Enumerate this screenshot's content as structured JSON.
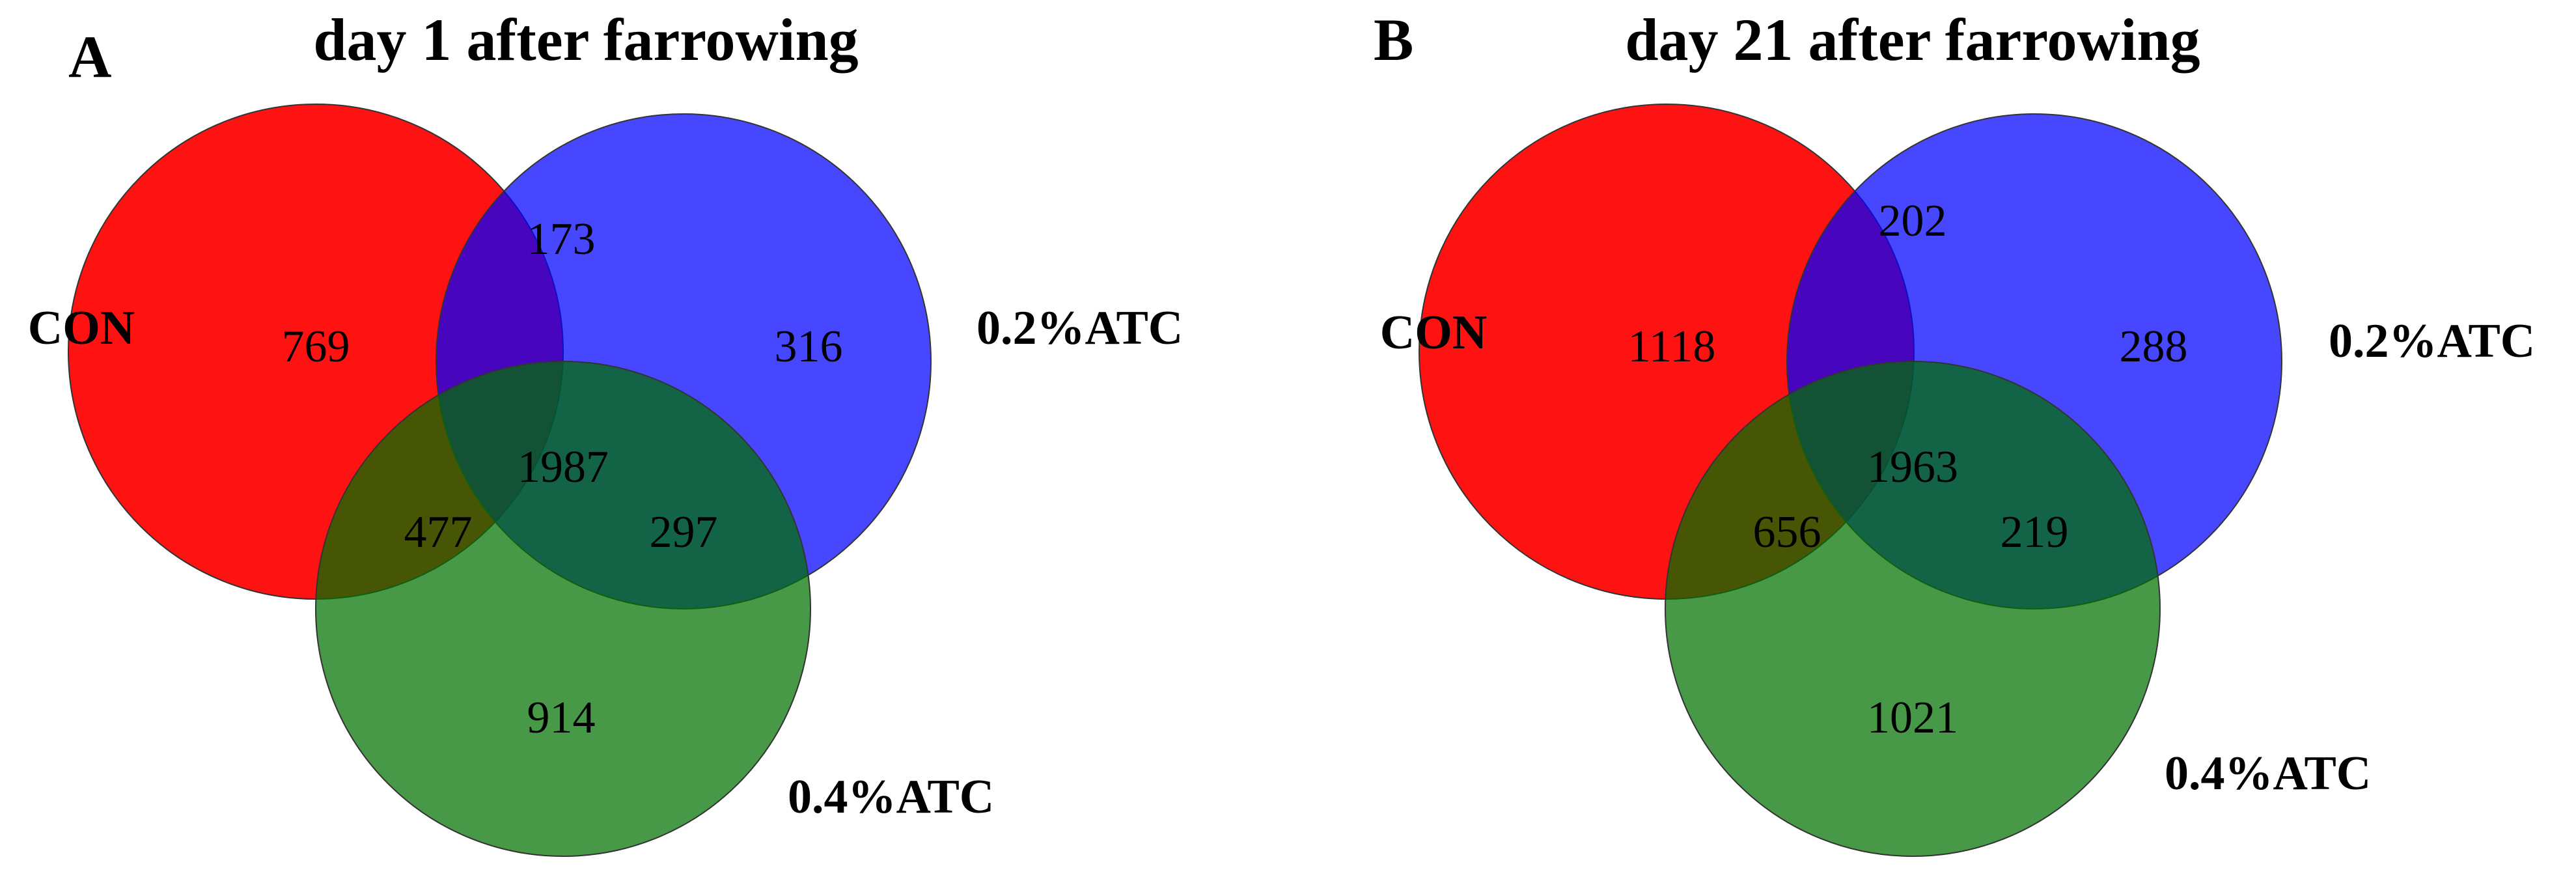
{
  "panels": [
    {
      "letter": "A",
      "title": "day 1 after farrowing",
      "sets": {
        "con": {
          "label": "CON",
          "color": "#ff0000"
        },
        "atc02": {
          "label": "0.2%ATC",
          "color": "#0000ff"
        },
        "atc04": {
          "label": "0.4%ATC",
          "color": "#007000"
        }
      },
      "counts": {
        "con_only": "769",
        "atc02_only": "316",
        "atc04_only": "914",
        "con_atc02": "173",
        "con_atc04": "477",
        "atc02_atc04": "297",
        "all": "1987"
      }
    },
    {
      "letter": "B",
      "title": "day 21 after farrowing",
      "sets": {
        "con": {
          "label": "CON",
          "color": "#ff0000"
        },
        "atc02": {
          "label": "0.2%ATC",
          "color": "#0000ff"
        },
        "atc04": {
          "label": "0.4%ATC",
          "color": "#007000"
        }
      },
      "counts": {
        "con_only": "1118",
        "atc02_only": "288",
        "atc04_only": "1021",
        "con_atc02": "202",
        "con_atc04": "656",
        "atc02_atc04": "219",
        "all": "1963"
      }
    }
  ]
}
